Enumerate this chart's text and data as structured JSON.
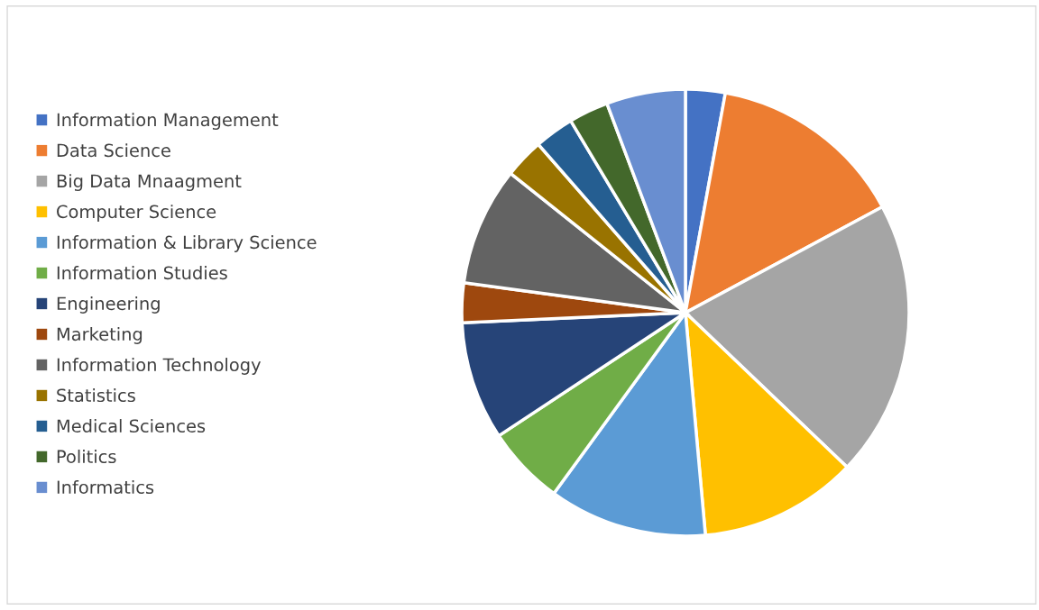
{
  "chart_data": {
    "type": "pie",
    "categories": [
      "Information Management",
      "Data Science",
      "Big Data Mnaagment",
      "Computer Science",
      "Information & Library Science",
      "Information Studies",
      "Engineering",
      "Marketing",
      "Information Technology",
      "Statistics",
      "Medical Sciences",
      "Politics",
      "Informatics"
    ],
    "values": [
      2.86,
      14.29,
      20,
      11.43,
      11.43,
      5.71,
      8.57,
      2.86,
      8.57,
      2.86,
      2.86,
      2.86,
      5.71
    ],
    "colors": [
      "#4472c4",
      "#ed7d31",
      "#a5a5a5",
      "#ffc000",
      "#5b9bd5",
      "#70ad47",
      "#264478",
      "#9e480e",
      "#636363",
      "#997300",
      "#255e91",
      "#43682b",
      "#698ed0"
    ],
    "legend": "left"
  }
}
